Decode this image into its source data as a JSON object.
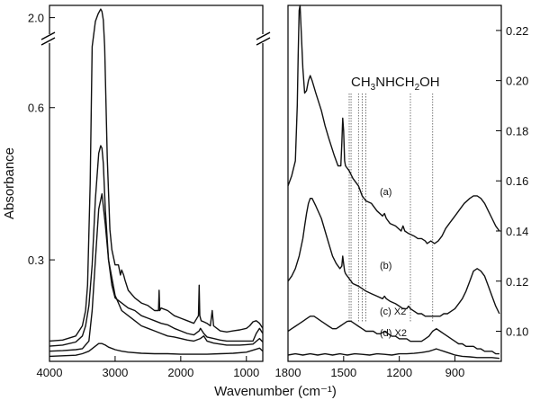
{
  "figure": {
    "xlabel": "Wavenumber (cm⁻¹)",
    "ylabel": "Absorbance"
  },
  "chart_data": [
    {
      "type": "line",
      "panel": "left",
      "xlabel": "Wavenumber (cm⁻¹)",
      "ylabel": "Absorbance",
      "xlim": [
        4000,
        750
      ],
      "x_ticks": [
        4000,
        3000,
        2000,
        1000
      ],
      "x_tick_labels": [
        "4000",
        "3000",
        "2000",
        "1000"
      ],
      "y_axis_broken": true,
      "y_segments": [
        {
          "range": [
            0.1,
            0.72
          ],
          "ticks": [
            0.3,
            0.6
          ],
          "tick_labels": [
            "0.3",
            "0.6"
          ]
        },
        {
          "range": [
            1.85,
            2.1
          ],
          "ticks": [
            2.0
          ],
          "tick_labels": [
            "2.0"
          ]
        }
      ],
      "series": [
        {
          "name": "(a)",
          "x": [
            4000,
            3800,
            3600,
            3500,
            3450,
            3420,
            3380,
            3350,
            3300,
            3260,
            3220,
            3200,
            3180,
            3160,
            3120,
            3080,
            3050,
            3000,
            2950,
            2920,
            2900,
            2870,
            2850,
            2800,
            2700,
            2600,
            2500,
            2400,
            2340,
            2330,
            2320,
            2300,
            2200,
            2100,
            2000,
            1900,
            1800,
            1730,
            1720,
            1710,
            1690,
            1650,
            1600,
            1550,
            1520,
            1500,
            1450,
            1400,
            1300,
            1200,
            1100,
            1000,
            950,
            900,
            850,
            800,
            750
          ],
          "y": [
            0.14,
            0.142,
            0.15,
            0.17,
            0.2,
            0.25,
            0.45,
            0.72,
            1.97,
            2.03,
            2.07,
            2.05,
            1.98,
            0.72,
            0.5,
            0.36,
            0.32,
            0.29,
            0.29,
            0.27,
            0.28,
            0.27,
            0.26,
            0.24,
            0.225,
            0.215,
            0.21,
            0.2,
            0.2,
            0.24,
            0.2,
            0.205,
            0.2,
            0.19,
            0.185,
            0.18,
            0.175,
            0.19,
            0.25,
            0.19,
            0.18,
            0.178,
            0.175,
            0.17,
            0.2,
            0.17,
            0.165,
            0.16,
            0.158,
            0.16,
            0.162,
            0.165,
            0.17,
            0.178,
            0.18,
            0.175,
            0.165
          ]
        },
        {
          "name": "(b)",
          "x": [
            4000,
            3800,
            3600,
            3500,
            3450,
            3400,
            3350,
            3300,
            3250,
            3220,
            3200,
            3180,
            3150,
            3100,
            3050,
            3000,
            2950,
            2900,
            2850,
            2800,
            2700,
            2600,
            2500,
            2400,
            2300,
            2200,
            2100,
            2000,
            1900,
            1800,
            1720,
            1700,
            1650,
            1600,
            1500,
            1400,
            1300,
            1200,
            1100,
            1000,
            900,
            850,
            800,
            750
          ],
          "y": [
            0.13,
            0.132,
            0.138,
            0.15,
            0.17,
            0.21,
            0.29,
            0.42,
            0.51,
            0.525,
            0.52,
            0.49,
            0.4,
            0.3,
            0.25,
            0.225,
            0.22,
            0.215,
            0.21,
            0.205,
            0.2,
            0.19,
            0.185,
            0.18,
            0.175,
            0.172,
            0.165,
            0.16,
            0.155,
            0.152,
            0.16,
            0.165,
            0.155,
            0.148,
            0.145,
            0.142,
            0.14,
            0.14,
            0.14,
            0.14,
            0.14,
            0.155,
            0.165,
            0.155
          ]
        },
        {
          "name": "(c) X2",
          "x": [
            4000,
            3800,
            3600,
            3500,
            3400,
            3350,
            3300,
            3250,
            3200,
            3150,
            3100,
            3000,
            2900,
            2800,
            2700,
            2600,
            2500,
            2400,
            2300,
            2200,
            2100,
            2000,
            1900,
            1800,
            1700,
            1650,
            1600,
            1500,
            1400,
            1300,
            1200,
            1100,
            1000,
            900,
            800,
            750
          ],
          "y": [
            0.12,
            0.121,
            0.123,
            0.125,
            0.14,
            0.2,
            0.3,
            0.4,
            0.43,
            0.37,
            0.3,
            0.23,
            0.2,
            0.19,
            0.18,
            0.17,
            0.165,
            0.16,
            0.155,
            0.15,
            0.148,
            0.145,
            0.142,
            0.14,
            0.145,
            0.15,
            0.14,
            0.136,
            0.134,
            0.132,
            0.132,
            0.132,
            0.133,
            0.134,
            0.145,
            0.138
          ]
        },
        {
          "name": "(d) X2",
          "x": [
            4000,
            3800,
            3600,
            3500,
            3400,
            3300,
            3250,
            3200,
            3150,
            3100,
            3000,
            2900,
            2800,
            2600,
            2400,
            2200,
            2000,
            1800,
            1600,
            1400,
            1200,
            1000,
            900,
            800,
            750
          ],
          "y": [
            0.11,
            0.111,
            0.112,
            0.115,
            0.12,
            0.13,
            0.135,
            0.135,
            0.132,
            0.128,
            0.123,
            0.12,
            0.118,
            0.116,
            0.115,
            0.115,
            0.114,
            0.114,
            0.114,
            0.115,
            0.116,
            0.118,
            0.122,
            0.126,
            0.12
          ]
        }
      ]
    },
    {
      "type": "line",
      "panel": "right",
      "xlabel": "Wavenumber (cm⁻¹)",
      "ylabel": "Absorbance",
      "xlim": [
        1800,
        650
      ],
      "ylim": [
        0.088,
        0.23
      ],
      "y_axis_position": "right",
      "x_ticks": [
        1800,
        1500,
        1200,
        900
      ],
      "x_tick_labels": [
        "1800",
        "1500",
        "1200",
        "900"
      ],
      "y_ticks": [
        0.1,
        0.12,
        0.14,
        0.16,
        0.18,
        0.2,
        0.22
      ],
      "y_tick_labels": [
        "0.10",
        "0.12",
        "0.14",
        "0.16",
        "0.18",
        "0.20",
        "0.22"
      ],
      "annotation": {
        "text_parts": [
          "CH",
          "3",
          "NHCH",
          "2",
          "OH"
        ],
        "marker_wavenumbers": [
          1470,
          1460,
          1420,
          1400,
          1380,
          1140,
          1020
        ]
      },
      "series": [
        {
          "name": "(a)",
          "x": [
            1800,
            1780,
            1760,
            1750,
            1745,
            1740,
            1735,
            1730,
            1720,
            1710,
            1700,
            1690,
            1680,
            1670,
            1650,
            1620,
            1600,
            1580,
            1550,
            1530,
            1515,
            1510,
            1505,
            1500,
            1495,
            1490,
            1470,
            1450,
            1420,
            1400,
            1380,
            1350,
            1320,
            1290,
            1280,
            1270,
            1250,
            1220,
            1190,
            1180,
            1170,
            1150,
            1120,
            1100,
            1080,
            1060,
            1050,
            1030,
            1010,
            990,
            970,
            950,
            930,
            900,
            880,
            850,
            820,
            800,
            780,
            760,
            740,
            720,
            700,
            680,
            660
          ],
          "y": [
            0.158,
            0.162,
            0.168,
            0.19,
            0.21,
            0.228,
            0.23,
            0.222,
            0.205,
            0.195,
            0.196,
            0.2,
            0.202,
            0.2,
            0.195,
            0.188,
            0.182,
            0.177,
            0.17,
            0.166,
            0.166,
            0.175,
            0.185,
            0.18,
            0.168,
            0.166,
            0.164,
            0.161,
            0.158,
            0.154,
            0.152,
            0.151,
            0.148,
            0.146,
            0.147,
            0.145,
            0.143,
            0.142,
            0.14,
            0.142,
            0.14,
            0.139,
            0.138,
            0.137,
            0.137,
            0.136,
            0.135,
            0.136,
            0.135,
            0.136,
            0.138,
            0.141,
            0.143,
            0.146,
            0.148,
            0.151,
            0.153,
            0.154,
            0.154,
            0.153,
            0.151,
            0.148,
            0.145,
            0.142,
            0.14
          ]
        },
        {
          "name": "(b)",
          "x": [
            1800,
            1780,
            1760,
            1740,
            1720,
            1710,
            1700,
            1690,
            1680,
            1670,
            1650,
            1620,
            1600,
            1580,
            1560,
            1540,
            1520,
            1510,
            1505,
            1500,
            1495,
            1490,
            1470,
            1450,
            1420,
            1400,
            1380,
            1350,
            1320,
            1290,
            1280,
            1270,
            1250,
            1220,
            1200,
            1180,
            1160,
            1150,
            1140,
            1120,
            1100,
            1080,
            1060,
            1040,
            1020,
            1000,
            980,
            960,
            940,
            920,
            900,
            880,
            860,
            840,
            820,
            800,
            780,
            760,
            740,
            720,
            700,
            680,
            660
          ],
          "y": [
            0.12,
            0.122,
            0.125,
            0.13,
            0.137,
            0.142,
            0.147,
            0.151,
            0.153,
            0.153,
            0.15,
            0.145,
            0.14,
            0.135,
            0.13,
            0.127,
            0.125,
            0.126,
            0.13,
            0.127,
            0.124,
            0.123,
            0.121,
            0.119,
            0.118,
            0.117,
            0.116,
            0.115,
            0.114,
            0.113,
            0.114,
            0.113,
            0.112,
            0.111,
            0.11,
            0.109,
            0.109,
            0.11,
            0.109,
            0.108,
            0.107,
            0.107,
            0.106,
            0.106,
            0.106,
            0.106,
            0.106,
            0.107,
            0.107,
            0.108,
            0.109,
            0.111,
            0.113,
            0.116,
            0.12,
            0.124,
            0.125,
            0.124,
            0.122,
            0.118,
            0.114,
            0.11,
            0.107
          ]
        },
        {
          "name": "(c) X2",
          "x": [
            1800,
            1780,
            1760,
            1740,
            1720,
            1700,
            1680,
            1660,
            1640,
            1620,
            1600,
            1580,
            1560,
            1540,
            1520,
            1500,
            1480,
            1460,
            1440,
            1420,
            1400,
            1380,
            1360,
            1340,
            1320,
            1300,
            1280,
            1260,
            1240,
            1220,
            1200,
            1180,
            1160,
            1140,
            1120,
            1100,
            1080,
            1060,
            1040,
            1020,
            1000,
            980,
            960,
            940,
            920,
            900,
            880,
            860,
            840,
            820,
            800,
            780,
            760,
            740,
            720,
            700,
            680,
            660
          ],
          "y": [
            0.1,
            0.101,
            0.102,
            0.103,
            0.104,
            0.105,
            0.106,
            0.106,
            0.105,
            0.104,
            0.103,
            0.102,
            0.101,
            0.101,
            0.102,
            0.103,
            0.104,
            0.104,
            0.103,
            0.102,
            0.101,
            0.1,
            0.1,
            0.1,
            0.099,
            0.099,
            0.1,
            0.099,
            0.098,
            0.098,
            0.097,
            0.097,
            0.097,
            0.096,
            0.096,
            0.096,
            0.096,
            0.097,
            0.098,
            0.1,
            0.101,
            0.1,
            0.099,
            0.098,
            0.097,
            0.096,
            0.095,
            0.095,
            0.094,
            0.094,
            0.094,
            0.093,
            0.093,
            0.092,
            0.092,
            0.092,
            0.091,
            0.091
          ]
        },
        {
          "name": "(d) X2",
          "x": [
            1800,
            1760,
            1720,
            1680,
            1640,
            1600,
            1560,
            1520,
            1480,
            1440,
            1400,
            1360,
            1320,
            1280,
            1240,
            1200,
            1160,
            1120,
            1080,
            1040,
            1020,
            1000,
            980,
            960,
            940,
            920,
            900,
            860,
            820,
            780,
            740,
            700,
            660
          ],
          "y": [
            0.0905,
            0.091,
            0.0905,
            0.091,
            0.0905,
            0.091,
            0.0905,
            0.091,
            0.0905,
            0.091,
            0.0908,
            0.0905,
            0.091,
            0.0908,
            0.0905,
            0.091,
            0.091,
            0.0912,
            0.0915,
            0.092,
            0.0925,
            0.093,
            0.0925,
            0.092,
            0.0915,
            0.091,
            0.0905,
            0.09,
            0.0898,
            0.0895,
            0.0895,
            0.0895,
            0.0892
          ]
        }
      ]
    }
  ]
}
